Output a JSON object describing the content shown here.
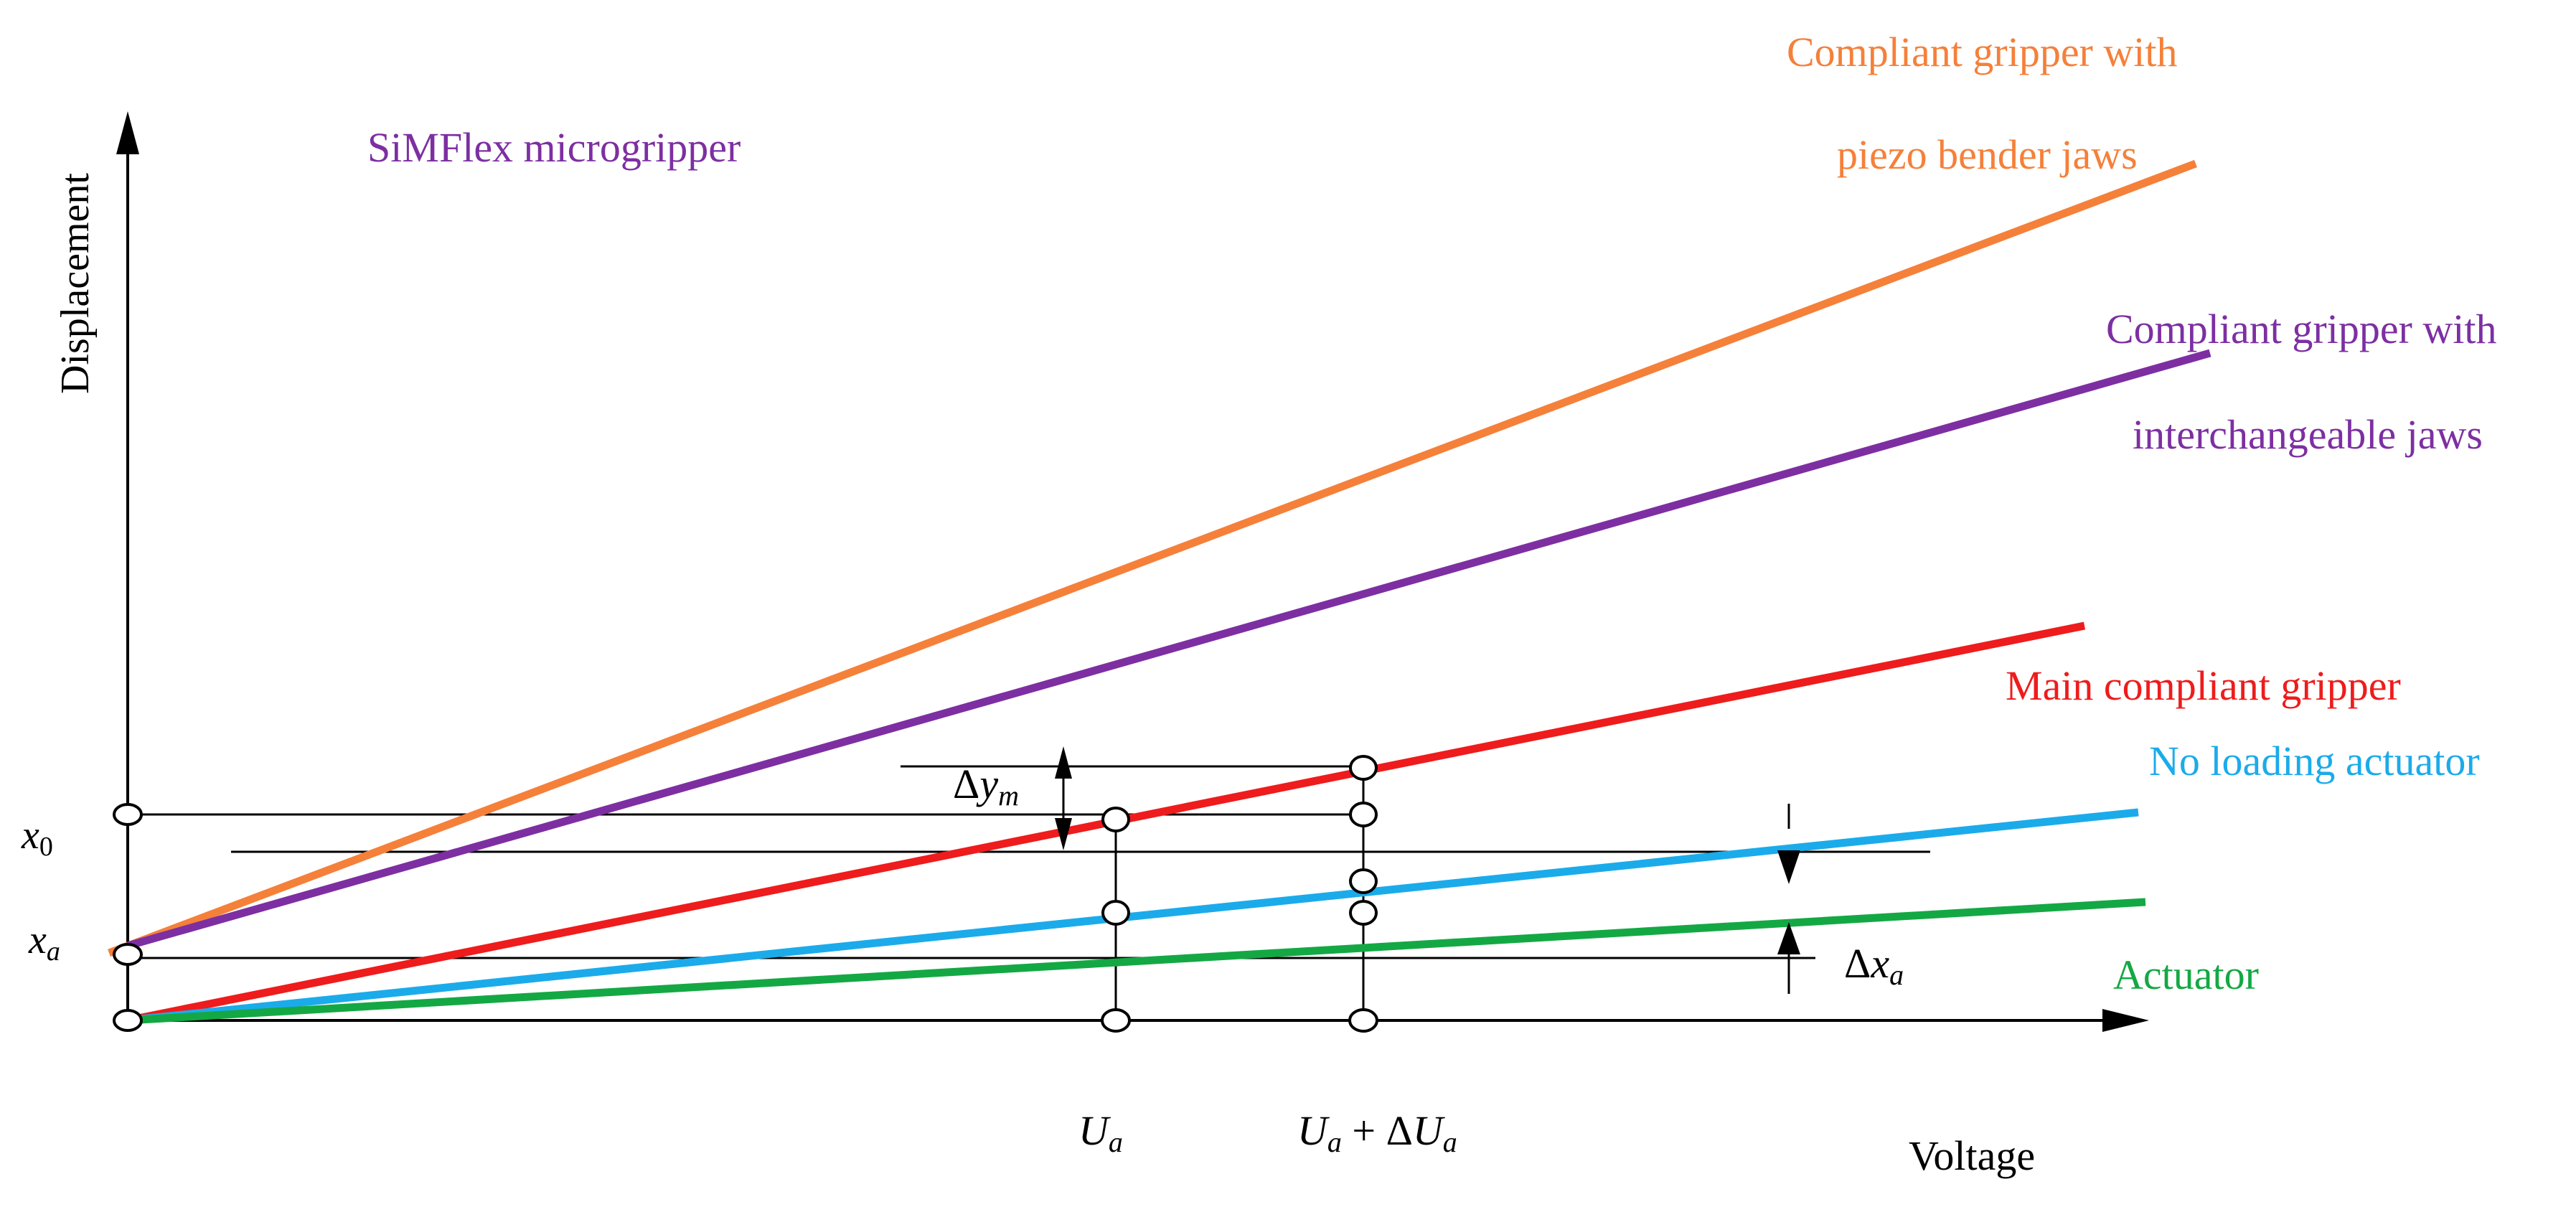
{
  "axes": {
    "y_label": "Displacement",
    "x_label": "Voltage"
  },
  "y_ticks": {
    "x0": {
      "base": "x",
      "sub": "0"
    },
    "xa": {
      "base": "x",
      "sub": "a"
    }
  },
  "x_ticks": {
    "ua": {
      "base": "U",
      "sub": "a"
    },
    "ua_plus": {
      "base": "U",
      "sub": "a",
      "plus": " + Δ",
      "base2": "U",
      "sub2": "a"
    }
  },
  "annotations": {
    "delta_ym": {
      "delta": "Δ",
      "base": "y",
      "sub": "m"
    },
    "delta_xa": {
      "delta": "Δ",
      "base": "x",
      "sub": "a"
    }
  },
  "series_labels": {
    "simflex": "SiMFlex microgripper",
    "piezo_line1": "Compliant gripper with",
    "piezo_line2": "piezo bender jaws",
    "interch_line1": "Compliant gripper with",
    "interch_line2": "interchangeable jaws",
    "main": "Main compliant gripper",
    "no_loading": "No loading actuator",
    "actuator": "Actuator"
  },
  "colors": {
    "orange": "#F5803A",
    "purple": "#7D2FA2",
    "red": "#EE1C1C",
    "cyan": "#1BABEA",
    "green": "#14A844",
    "black": "#000000"
  }
}
